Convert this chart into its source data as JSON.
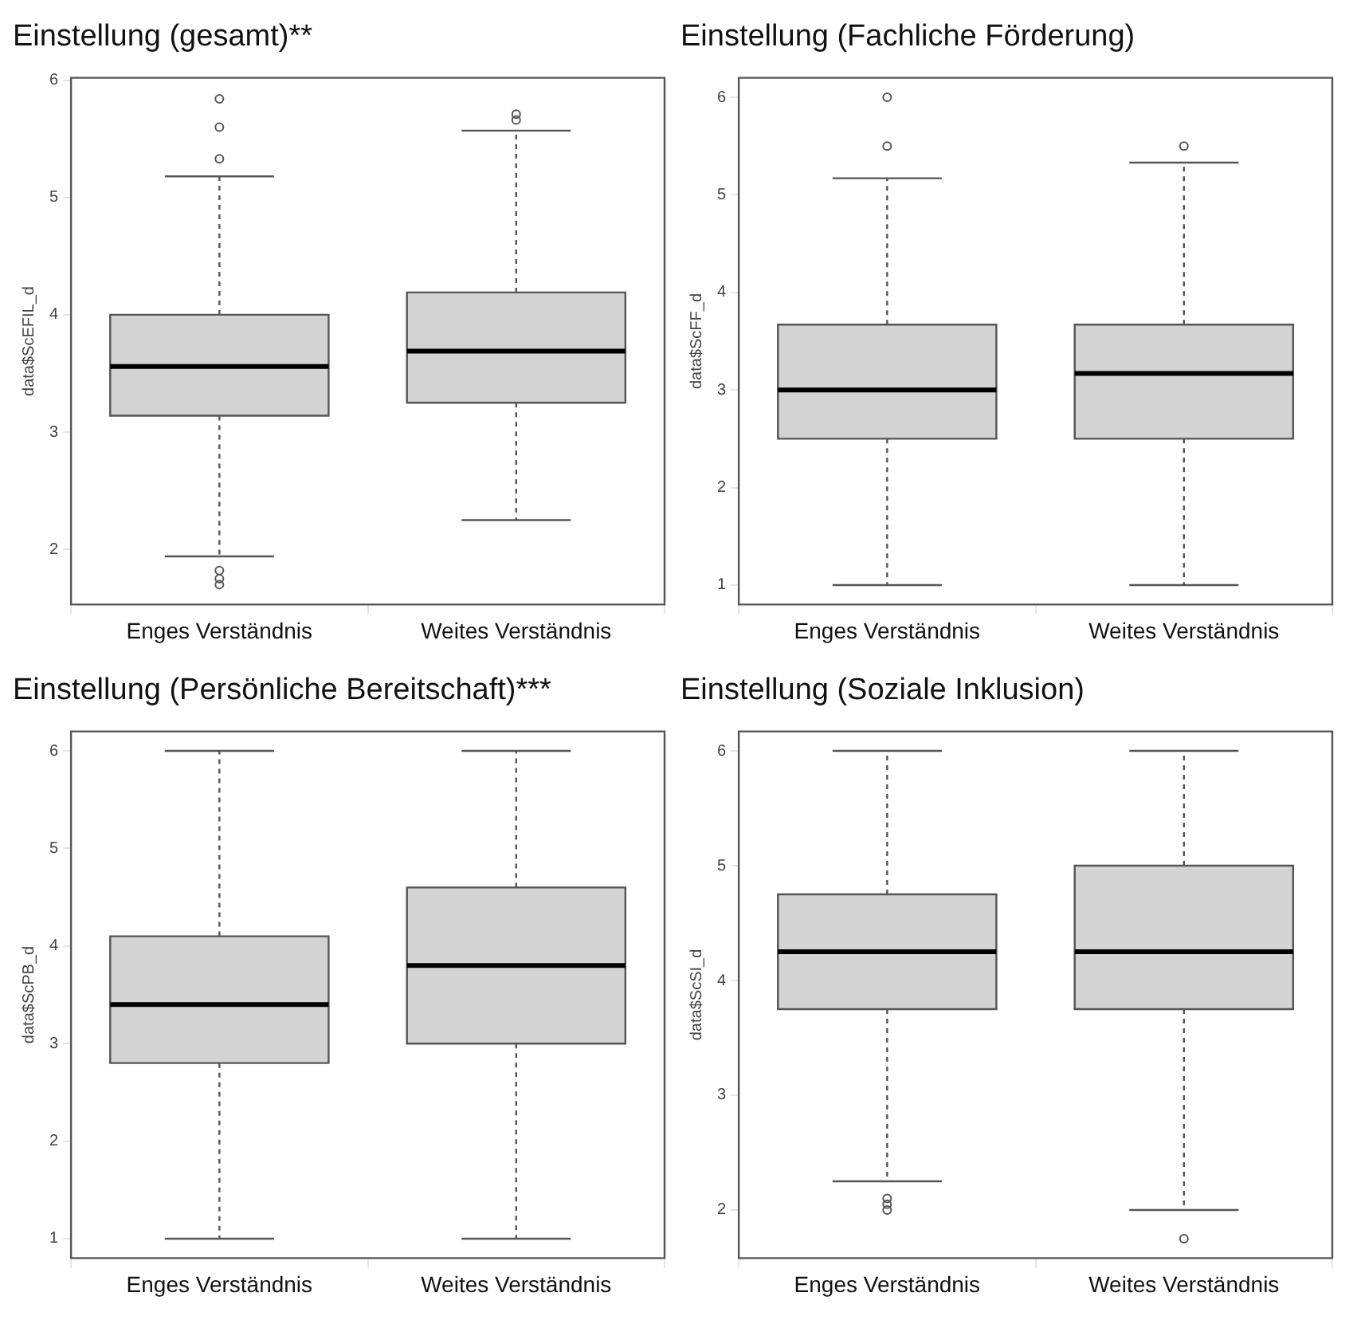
{
  "chart_data": [
    {
      "type": "box",
      "title": "Einstellung (gesamt)**",
      "ylabel": "data$ScEFIL_d",
      "categories": [
        "Enges Verständnis",
        "Weites Verständnis"
      ],
      "ylim": [
        1.53,
        6.02
      ],
      "yticks": [
        2,
        3,
        4,
        5,
        6
      ],
      "grid": false,
      "legend": false,
      "marker": "circle",
      "color": "#d3d3d3",
      "boxes": [
        {
          "low": 1.94,
          "q1": 3.14,
          "median": 3.56,
          "q3": 4.0,
          "high": 5.18,
          "outliers": [
            5.84,
            5.6,
            5.33,
            1.82,
            1.75,
            1.7
          ]
        },
        {
          "low": 2.25,
          "q1": 3.25,
          "median": 3.69,
          "q3": 4.19,
          "high": 5.57,
          "outliers": [
            5.71,
            5.66
          ]
        }
      ]
    },
    {
      "type": "box",
      "title": "Einstellung (Fachliche Förderung)",
      "ylabel": "data$ScFF_d",
      "categories": [
        "Enges Verständnis",
        "Weites Verständnis"
      ],
      "ylim": [
        0.8,
        6.2
      ],
      "yticks": [
        1,
        2,
        3,
        4,
        5,
        6
      ],
      "grid": false,
      "legend": false,
      "marker": "circle",
      "color": "#d3d3d3",
      "boxes": [
        {
          "low": 1.0,
          "q1": 2.5,
          "median": 3.0,
          "q3": 3.67,
          "high": 5.17,
          "outliers": [
            6.0,
            5.5
          ]
        },
        {
          "low": 1.0,
          "q1": 2.5,
          "median": 3.17,
          "q3": 3.67,
          "high": 5.33,
          "outliers": [
            5.5
          ]
        }
      ]
    },
    {
      "type": "box",
      "title": "Einstellung (Persönliche Bereitschaft)***",
      "ylabel": "data$ScPB_d",
      "categories": [
        "Enges Verständnis",
        "Weites Verständnis"
      ],
      "ylim": [
        0.8,
        6.2
      ],
      "yticks": [
        1,
        2,
        3,
        4,
        5,
        6
      ],
      "grid": false,
      "legend": false,
      "marker": "circle",
      "color": "#d3d3d3",
      "boxes": [
        {
          "low": 1.0,
          "q1": 2.8,
          "median": 3.4,
          "q3": 4.1,
          "high": 6.0
        },
        {
          "low": 1.0,
          "q1": 3.0,
          "median": 3.8,
          "q3": 4.6,
          "high": 6.0
        }
      ]
    },
    {
      "type": "box",
      "title": "Einstellung (Soziale Inklusion)",
      "ylabel": "data$ScSI_d",
      "categories": [
        "Enges Verständnis",
        "Weites Verständnis"
      ],
      "ylim": [
        1.58,
        6.17
      ],
      "yticks": [
        2,
        3,
        4,
        5,
        6
      ],
      "grid": false,
      "legend": false,
      "marker": "circle",
      "color": "#d3d3d3",
      "boxes": [
        {
          "low": 2.25,
          "q1": 3.75,
          "median": 4.25,
          "q3": 4.75,
          "high": 6.0,
          "outliers": [
            2.1,
            2.05,
            2.0
          ]
        },
        {
          "low": 2.0,
          "q1": 3.75,
          "median": 4.25,
          "q3": 5.0,
          "high": 6.0,
          "outliers": [
            1.75
          ]
        }
      ]
    }
  ]
}
